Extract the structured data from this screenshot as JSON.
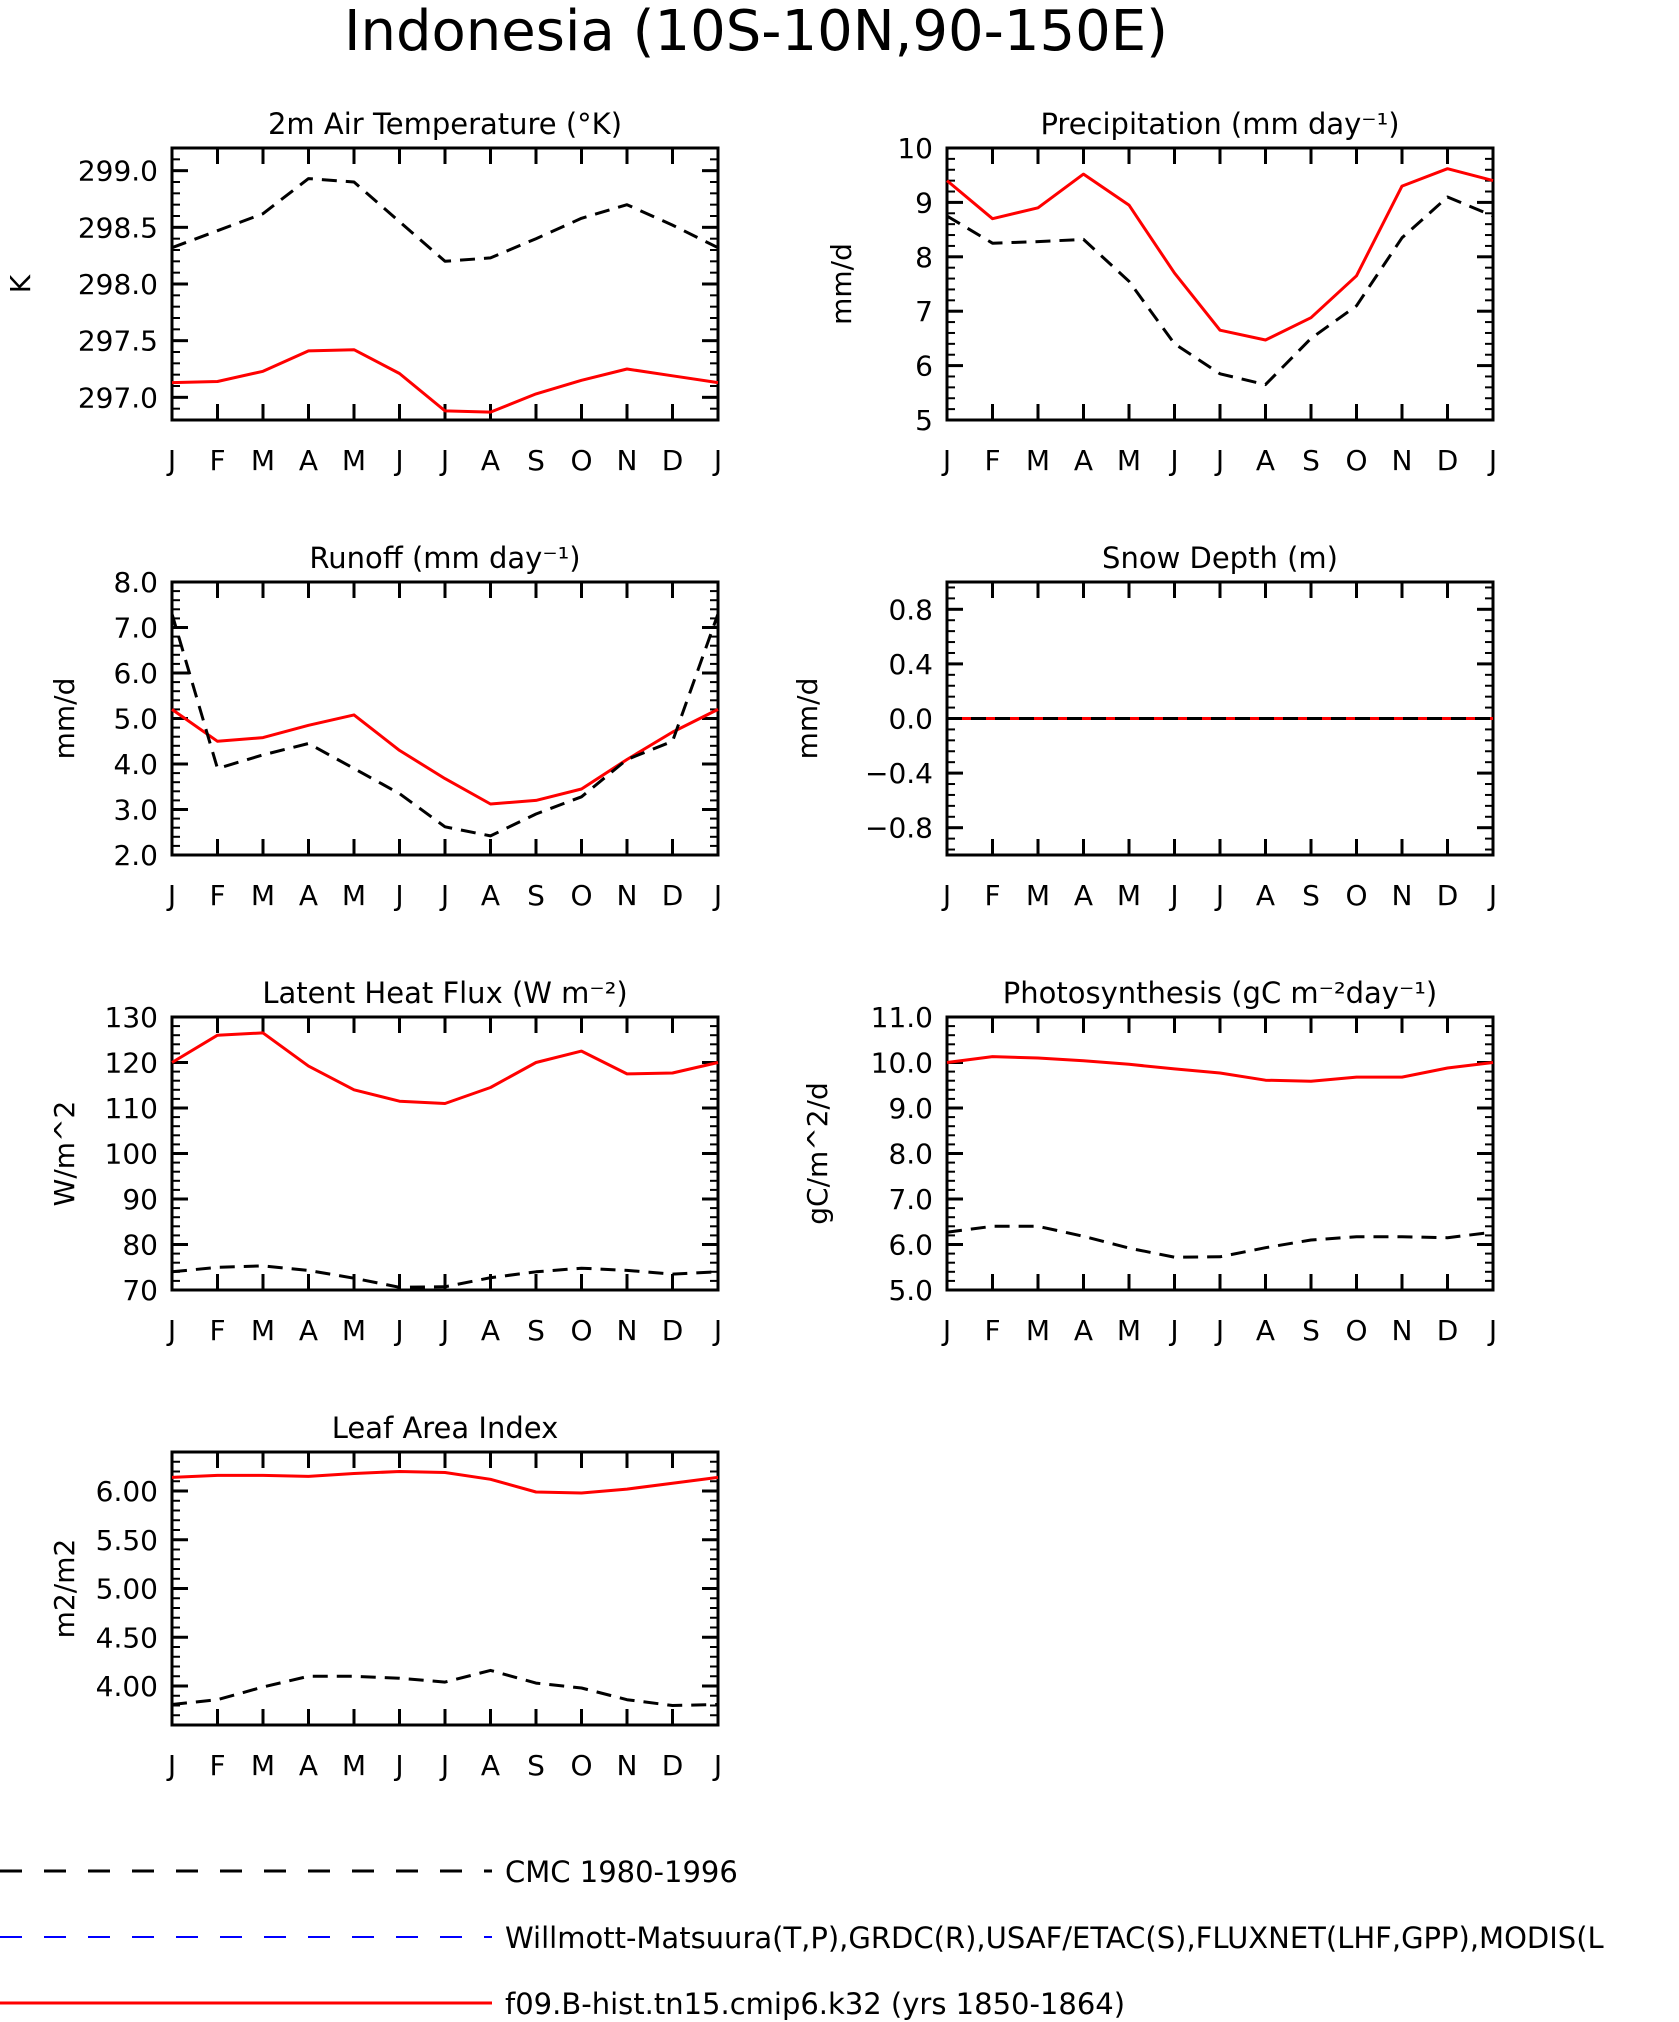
{
  "figure_title": "Indonesia (10S-10N,90-150E)",
  "colors": {
    "obs": "#000000",
    "model": "#ff0000",
    "alt_obs": "#0000ff"
  },
  "chart_data": [
    {
      "type": "line",
      "title": "2m Air Temperature (°K)",
      "ylabel": "K",
      "categories": [
        "J",
        "F",
        "M",
        "A",
        "M",
        "J",
        "J",
        "A",
        "S",
        "O",
        "N",
        "D",
        "J"
      ],
      "ylim": [
        296.8,
        299.2
      ],
      "yticks": [
        "297.0",
        "297.5",
        "298.0",
        "298.5",
        "299.0"
      ],
      "series": [
        {
          "name": "CMC 1980-1996",
          "values": [
            298.32,
            298.47,
            298.62,
            298.93,
            298.9,
            298.55,
            298.2,
            298.23,
            298.4,
            298.58,
            298.7,
            298.52,
            298.32
          ]
        },
        {
          "name": "f09.B-hist.tn15.cmip6.k32 (yrs 1850-1864)",
          "values": [
            297.13,
            297.14,
            297.23,
            297.41,
            297.42,
            297.21,
            296.88,
            296.87,
            297.03,
            297.15,
            297.25,
            297.19,
            297.13
          ]
        }
      ]
    },
    {
      "type": "line",
      "title": "Precipitation (mm day⁻¹)",
      "ylabel": "mm/d",
      "categories": [
        "J",
        "F",
        "M",
        "A",
        "M",
        "J",
        "J",
        "A",
        "S",
        "O",
        "N",
        "D",
        "J"
      ],
      "ylim": [
        5,
        10
      ],
      "yticks": [
        "5",
        "6",
        "7",
        "8",
        "9",
        "10"
      ],
      "series": [
        {
          "name": "CMC 1980-1996",
          "values": [
            8.75,
            8.25,
            8.28,
            8.32,
            7.55,
            6.4,
            5.85,
            5.65,
            6.5,
            7.1,
            8.35,
            9.1,
            8.75
          ]
        },
        {
          "name": "f09.B-hist.tn15.cmip6.k32 (yrs 1850-1864)",
          "values": [
            9.4,
            8.7,
            8.9,
            9.52,
            8.95,
            7.7,
            6.65,
            6.47,
            6.88,
            7.65,
            9.3,
            9.62,
            9.4
          ]
        }
      ]
    },
    {
      "type": "line",
      "title": "Runoff (mm day⁻¹)",
      "ylabel": "mm/d",
      "categories": [
        "J",
        "F",
        "M",
        "A",
        "M",
        "J",
        "J",
        "A",
        "S",
        "O",
        "N",
        "D",
        "J"
      ],
      "ylim": [
        2,
        8
      ],
      "yticks": [
        "2.0",
        "3.0",
        "4.0",
        "5.0",
        "6.0",
        "7.0",
        "8.0"
      ],
      "series": [
        {
          "name": "CMC 1980-1996",
          "values": [
            7.3,
            3.9,
            4.2,
            4.45,
            3.9,
            3.35,
            2.62,
            2.42,
            2.9,
            3.28,
            4.1,
            4.5,
            7.3
          ]
        },
        {
          "name": "f09.B-hist.tn15.cmip6.k32 (yrs 1850-1864)",
          "values": [
            5.2,
            4.5,
            4.58,
            4.85,
            5.08,
            4.3,
            3.68,
            3.12,
            3.2,
            3.45,
            4.1,
            4.7,
            5.2
          ]
        }
      ]
    },
    {
      "type": "line",
      "title": "Snow Depth (m)",
      "ylabel": "mm/d",
      "categories": [
        "J",
        "F",
        "M",
        "A",
        "M",
        "J",
        "J",
        "A",
        "S",
        "O",
        "N",
        "D",
        "J"
      ],
      "ylim": [
        -1.0,
        1.0
      ],
      "yticks": [
        "-0.8",
        "-0.4",
        "0.0",
        "0.4",
        "0.8"
      ],
      "series": [
        {
          "name": "CMC 1980-1996",
          "values": [
            0,
            0,
            0,
            0,
            0,
            0,
            0,
            0,
            0,
            0,
            0,
            0,
            0
          ]
        },
        {
          "name": "f09.B-hist.tn15.cmip6.k32 (yrs 1850-1864)",
          "values": [
            0,
            0,
            0,
            0,
            0,
            0,
            0,
            0,
            0,
            0,
            0,
            0,
            0
          ]
        }
      ]
    },
    {
      "type": "line",
      "title": "Latent Heat Flux (W m⁻²)",
      "ylabel": "W/m^2",
      "categories": [
        "J",
        "F",
        "M",
        "A",
        "M",
        "J",
        "J",
        "A",
        "S",
        "O",
        "N",
        "D",
        "J"
      ],
      "ylim": [
        70,
        130
      ],
      "yticks": [
        "70",
        "80",
        "90",
        "100",
        "110",
        "120",
        "130"
      ],
      "series": [
        {
          "name": "CMC 1980-1996",
          "values": [
            74,
            75,
            75.3,
            74.3,
            72.6,
            70.6,
            70.7,
            72.7,
            74,
            74.8,
            74.3,
            73.5,
            74
          ]
        },
        {
          "name": "f09.B-hist.tn15.cmip6.k32 (yrs 1850-1864)",
          "values": [
            120,
            126,
            126.5,
            119.2,
            114,
            111.5,
            111,
            114.5,
            120,
            122.5,
            117.5,
            117.7,
            120
          ]
        }
      ]
    },
    {
      "type": "line",
      "title": "Photosynthesis (gC m⁻²day⁻¹)",
      "ylabel": "gC/m^2/d",
      "categories": [
        "J",
        "F",
        "M",
        "A",
        "M",
        "J",
        "J",
        "A",
        "S",
        "O",
        "N",
        "D",
        "J"
      ],
      "ylim": [
        5,
        11
      ],
      "yticks": [
        "5.0",
        "6.0",
        "7.0",
        "8.0",
        "9.0",
        "10.0",
        "11.0"
      ],
      "series": [
        {
          "name": "CMC 1980-1996",
          "values": [
            6.27,
            6.4,
            6.4,
            6.18,
            5.92,
            5.72,
            5.73,
            5.93,
            6.1,
            6.17,
            6.17,
            6.15,
            6.27
          ]
        },
        {
          "name": "f09.B-hist.tn15.cmip6.k32 (yrs 1850-1864)",
          "values": [
            10.0,
            10.13,
            10.1,
            10.04,
            9.96,
            9.86,
            9.77,
            9.61,
            9.59,
            9.68,
            9.68,
            9.88,
            10.0
          ]
        }
      ]
    },
    {
      "type": "line",
      "title": "Leaf Area Index",
      "ylabel": "m2/m2",
      "categories": [
        "J",
        "F",
        "M",
        "A",
        "M",
        "J",
        "J",
        "A",
        "S",
        "O",
        "N",
        "D",
        "J"
      ],
      "ylim": [
        3.6,
        6.4
      ],
      "yticks": [
        "4.00",
        "4.50",
        "5.00",
        "5.50",
        "6.00"
      ],
      "series": [
        {
          "name": "CMC 1980-1996",
          "values": [
            3.81,
            3.86,
            3.99,
            4.1,
            4.1,
            4.08,
            4.04,
            4.16,
            4.03,
            3.98,
            3.86,
            3.8,
            3.81
          ]
        },
        {
          "name": "f09.B-hist.tn15.cmip6.k32 (yrs 1850-1864)",
          "values": [
            6.14,
            6.16,
            6.16,
            6.15,
            6.18,
            6.2,
            6.19,
            6.12,
            5.99,
            5.98,
            6.02,
            6.08,
            6.14
          ]
        }
      ]
    }
  ],
  "legend": [
    {
      "label": "CMC 1980-1996",
      "style": "dashed",
      "color": "#000000"
    },
    {
      "label": "Willmott-Matsuura(T,P),GRDC(R),USAF/ETAC(S),FLUXNET(LHF,GPP),MODIS(L",
      "style": "dashed",
      "color": "#0000ff"
    },
    {
      "label": "f09.B-hist.tn15.cmip6.k32 (yrs 1850-1864)",
      "style": "solid",
      "color": "#ff0000"
    }
  ]
}
